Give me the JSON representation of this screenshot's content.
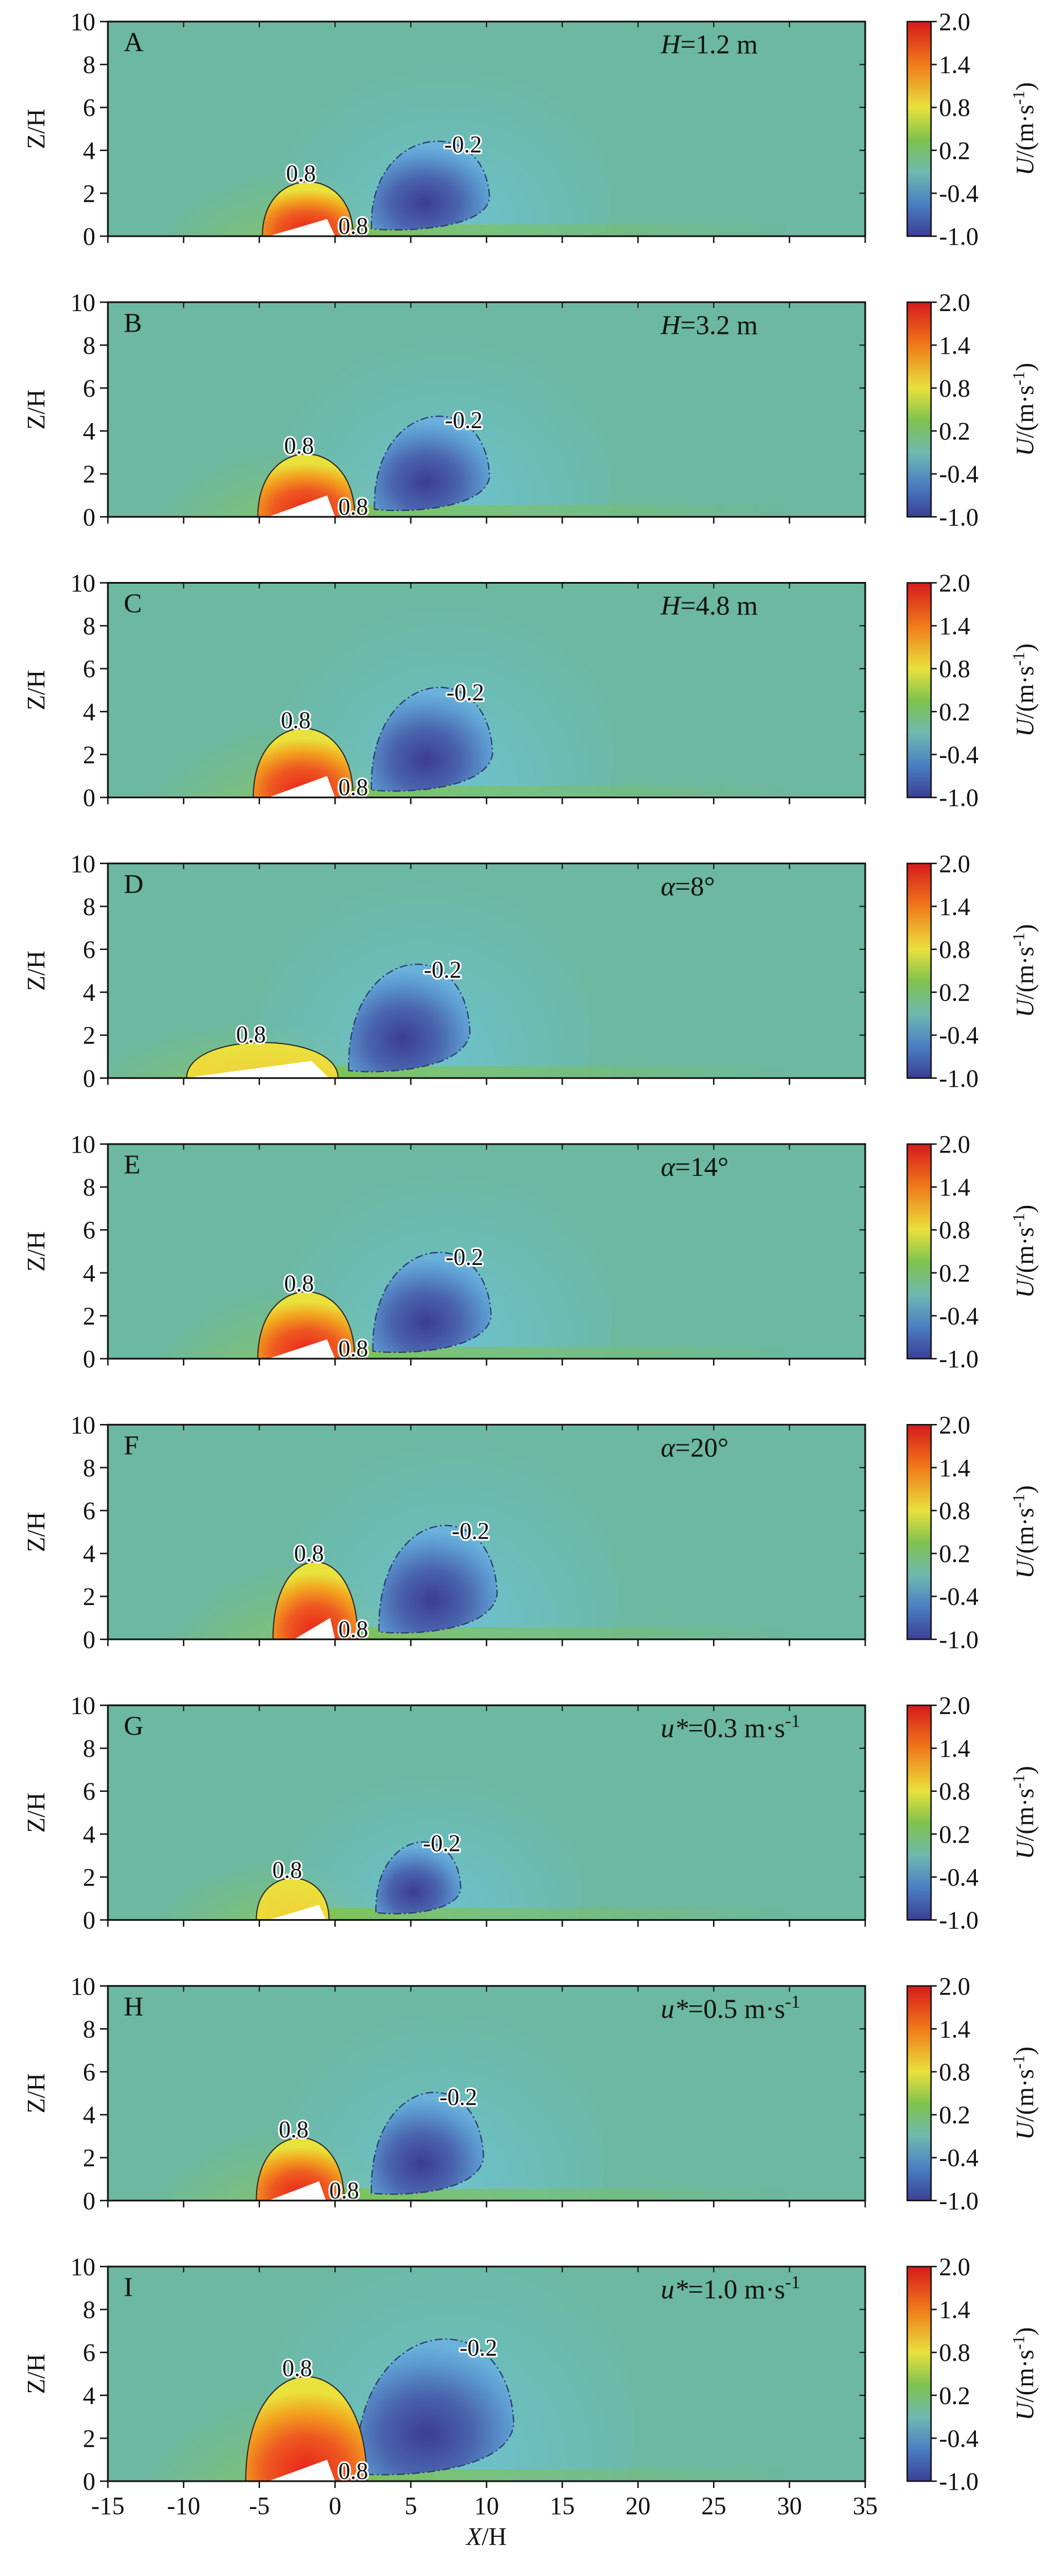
{
  "figure": {
    "xlabel_main": "X",
    "xlabel_suffix": "/H",
    "ylabel": "Z/H",
    "colorbar_title_main": "U",
    "colorbar_title_suffix": "/(m·s",
    "colorbar_title_exp": "-1",
    "colorbar_title_close": ")"
  },
  "colors": {
    "background": "#6cb8a0",
    "red": "#e8372a",
    "yellow": "#e9e13c",
    "green": "#7fc24e",
    "cyan": "#7cc4c6",
    "blue": "#4a5fa8",
    "dune": "#ffffff"
  },
  "chart_data": {
    "type": "heatmap",
    "variable": "U",
    "units": "m·s-1",
    "xlim": [
      -15,
      35
    ],
    "ylim": [
      0,
      10
    ],
    "x_ticks": [
      "-15",
      "-10",
      "-5",
      "0",
      "5",
      "10",
      "15",
      "20",
      "25",
      "30",
      "35"
    ],
    "y_ticks": [
      "0",
      "2",
      "4",
      "6",
      "8",
      "10"
    ],
    "colorbar_ticks": [
      "2.0",
      "1.4",
      "0.8",
      "0.2",
      "-0.4",
      "-1.0"
    ],
    "colorbar_range": [
      -1.0,
      2.0
    ],
    "panels": [
      {
        "letter": "A",
        "param_sym": "H",
        "param_val": "=1.2 m",
        "param_sup": "",
        "pos_label": "0.8",
        "pos_label2": "0.8",
        "neg_label": "-0.2",
        "pos_x": -1.8,
        "pos_rx": 3.0,
        "pos_h": 2.6,
        "core_h": 1.9,
        "neg_x": 6.3,
        "neg_rx": 3.9,
        "neg_h": 5.0,
        "neg_core": 2.0,
        "dune_h": 0.8,
        "dune_lx": -4.4,
        "dune_rx": 0.0
      },
      {
        "letter": "B",
        "param_sym": "H",
        "param_val": "=3.2 m",
        "param_sup": "",
        "pos_label": "0.8",
        "pos_label2": "0.8",
        "neg_label": "-0.2",
        "pos_x": -1.9,
        "pos_rx": 3.2,
        "pos_h": 3.0,
        "core_h": 2.2,
        "neg_x": 6.4,
        "neg_rx": 3.8,
        "neg_h": 5.3,
        "neg_core": 2.2,
        "dune_h": 1.0,
        "dune_lx": -4.4,
        "dune_rx": 0.0
      },
      {
        "letter": "C",
        "param_sym": "H",
        "param_val": "=4.8 m",
        "param_sup": "",
        "pos_label": "0.8",
        "pos_label2": "0.8",
        "neg_label": "-0.2",
        "pos_x": -2.1,
        "pos_rx": 3.3,
        "pos_h": 3.3,
        "core_h": 2.5,
        "neg_x": 6.4,
        "neg_rx": 4.0,
        "neg_h": 5.8,
        "neg_core": 2.5,
        "dune_h": 1.0,
        "dune_lx": -4.4,
        "dune_rx": 0.0
      },
      {
        "letter": "D",
        "param_sym": "α",
        "param_val": "=8°",
        "param_sup": "",
        "pos_label": "0.8",
        "pos_label2": "",
        "neg_label": "-0.2",
        "pos_x": -4.8,
        "pos_rx": 5.0,
        "pos_h": 1.7,
        "core_h": 0.0,
        "neg_x": 4.9,
        "neg_rx": 4.0,
        "neg_h": 6.0,
        "neg_core": 2.4,
        "dune_h": 0.8,
        "dune_lx": -10.0,
        "dune_rx": -0.4
      },
      {
        "letter": "E",
        "param_sym": "α",
        "param_val": "=14°",
        "param_sup": "",
        "pos_label": "0.8",
        "pos_label2": "0.8",
        "neg_label": "-0.2",
        "pos_x": -1.9,
        "pos_rx": 3.2,
        "pos_h": 3.2,
        "core_h": 2.2,
        "neg_x": 6.4,
        "neg_rx": 3.9,
        "neg_h": 5.6,
        "neg_core": 2.3,
        "dune_h": 0.9,
        "dune_lx": -4.4,
        "dune_rx": 0.0
      },
      {
        "letter": "F",
        "param_sym": "α",
        "param_val": "=20°",
        "param_sup": "",
        "pos_label": "0.8",
        "pos_label2": "0.8",
        "neg_label": "-0.2",
        "pos_x": -1.3,
        "pos_rx": 2.8,
        "pos_h": 3.7,
        "core_h": 2.7,
        "neg_x": 6.8,
        "neg_rx": 3.9,
        "neg_h": 6.0,
        "neg_core": 2.5,
        "dune_h": 1.0,
        "dune_lx": -2.7,
        "dune_rx": 0.0
      },
      {
        "letter": "G",
        "param_sym": "u*",
        "param_val": "=0.3 m·s",
        "param_sup": "-1",
        "pos_label": "0.8",
        "pos_label2": "",
        "neg_label": "-0.2",
        "pos_x": -2.8,
        "pos_rx": 2.4,
        "pos_h": 2.0,
        "core_h": 0.0,
        "neg_x": 5.5,
        "neg_rx": 2.8,
        "neg_h": 4.1,
        "neg_core": 1.3,
        "dune_h": 0.7,
        "dune_lx": -4.4,
        "dune_rx": -0.6
      },
      {
        "letter": "H",
        "param_sym": "u*",
        "param_val": "=0.5 m·s",
        "param_sup": "-1",
        "pos_label": "0.8",
        "pos_label2": "0.8",
        "neg_label": "-0.2",
        "pos_x": -2.3,
        "pos_rx": 2.9,
        "pos_h": 3.0,
        "core_h": 2.1,
        "neg_x": 6.1,
        "neg_rx": 3.7,
        "neg_h": 5.7,
        "neg_core": 2.2,
        "dune_h": 0.9,
        "dune_lx": -4.4,
        "dune_rx": -0.6
      },
      {
        "letter": "I",
        "param_sym": "u*",
        "param_val": "=1.0 m·s",
        "param_sup": "-1",
        "pos_label": "0.8",
        "pos_label2": "0.8",
        "neg_label": "-0.2",
        "pos_x": -1.9,
        "pos_rx": 4.0,
        "pos_h": 5.0,
        "core_h": 4.0,
        "neg_x": 6.6,
        "neg_rx": 5.2,
        "neg_h": 7.5,
        "neg_core": 4.0,
        "dune_h": 1.0,
        "dune_lx": -4.4,
        "dune_rx": 0.0
      }
    ]
  }
}
